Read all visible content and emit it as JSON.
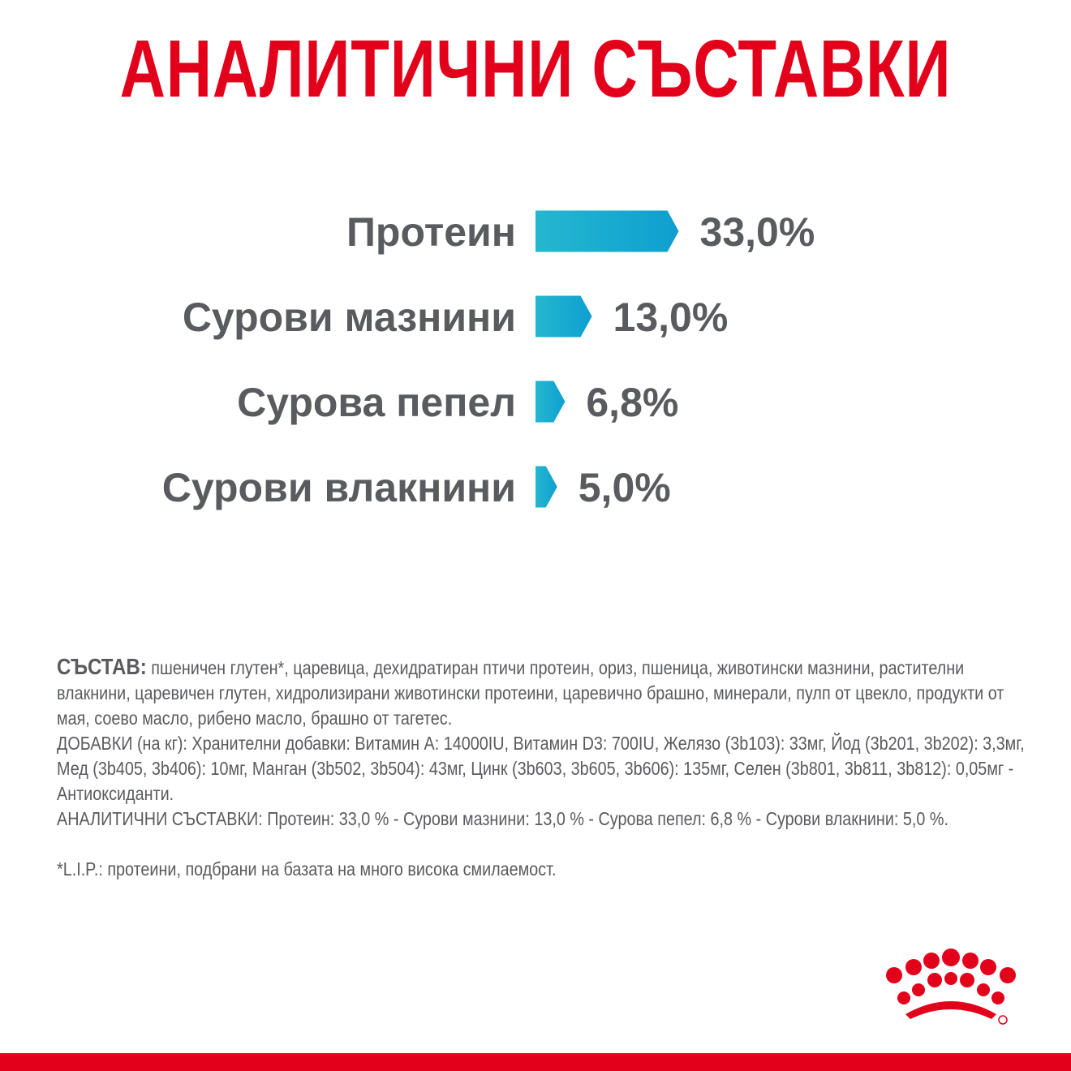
{
  "title": "АНАЛИТИЧНИ СЪСТАВКИ",
  "colors": {
    "brand_red": "#e2001a",
    "bar_light": "#25b7cf",
    "bar_dark": "#0e9fd0",
    "text_gray": "#5a5b5e"
  },
  "chart_data": {
    "type": "bar",
    "orientation": "horizontal",
    "categories": [
      "Протеин",
      "Сурови мазнини",
      "Сурова пепел",
      "Сурови влакнини"
    ],
    "values": [
      33.0,
      13.0,
      6.8,
      5.0
    ],
    "value_labels": [
      "33,0%",
      "13,0%",
      "6,8%",
      "5,0%"
    ],
    "unit": "%"
  },
  "composition": {
    "heading": "СЪСТАВ:",
    "ingredients": "пшеничен глутен*, царевица, дехидратиран птичи протеин, ориз, пшеница, животински мазнини, растителни влакнини, царевичен глутен, хидролизирани животински протеини, царевично брашно, минерали, пулп от цвекло, продукти от мая, соево масло, рибено масло, брашно от тагетес.",
    "additives": "ДОБАВКИ (на кг): Хранителни добавки: Витамин А: 14000IU, Витамин D3: 700IU, Желязо (3b103): 33мг, Йод (3b201, 3b202): 3,3мг, Мед (3b405, 3b406): 10мг, Манган (3b502, 3b504): 43мг, Цинк (3b603, 3b605, 3b606): 135мг, Селен (3b801, 3b811, 3b812): 0,05мг - Антиоксиданти.",
    "analytical": "АНАЛИТИЧНИ СЪСТАВКИ: Протеин: 33,0 % - Сурови мазнини: 13,0 % - Сурова пепел: 6,8 % - Сурови влакнини: 5,0 %.",
    "footnote": "*L.I.P.: протеини, подбрани на базата на много висока смилаемост."
  },
  "logo": {
    "icon": "royal-canin-crown-icon"
  }
}
